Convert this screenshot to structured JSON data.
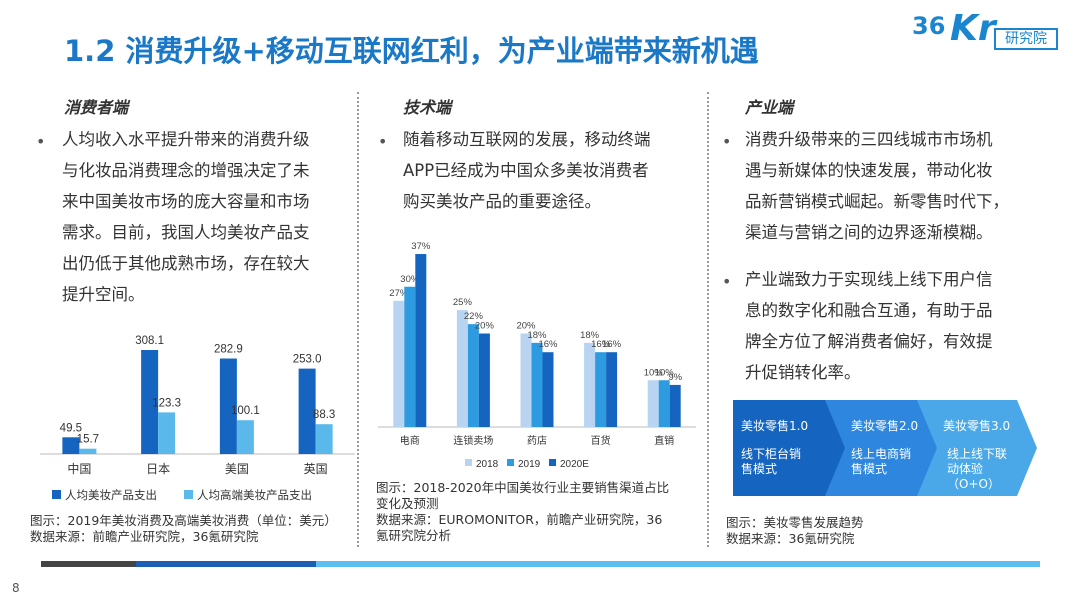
{
  "title": "1.2 消费升级+移动互联网红利，为产业端带来新机遇",
  "logo": {
    "num": "36",
    "kr": "Kr",
    "box": "研究院"
  },
  "col1": {
    "title": "消费者端",
    "lines": [
      "人均收入水平提升带来的消费升级",
      "与化妆品消费理念的增强决定了未",
      "来中国美妆市场的庞大容量和市场",
      "需求。目前，我国人均美妆产品支",
      "出仍低于其他成熟市场，存在较大",
      "提升空间。"
    ],
    "caption": [
      "图示：2019年美妆消费及高端美妆消费（单位：美元）",
      "数据来源：前瞻产业研究院，36氪研究院"
    ]
  },
  "col2": {
    "title": "技术端",
    "lines": [
      "随着移动互联网的发展，移动终端",
      "APP已经成为中国众多美妆消费者",
      "购买美妆产品的重要途径。"
    ],
    "caption": [
      "图示：2018-2020年中国美妆行业主要销售渠道占比",
      "变化及预测",
      "数据来源：EUROMONITOR，前瞻产业研究院，36",
      "氪研究院分析"
    ]
  },
  "col3": {
    "title": "产业端",
    "bullet1": [
      "消费升级带来的三四线城市市场机",
      "遇与新媒体的快速发展，带动化妆",
      "品新营销模式崛起。新零售时代下，",
      "渠道与营销之间的边界逐渐模糊。"
    ],
    "bullet2": [
      "产业端致力于实现线上线下用户信",
      "息的数字化和融合互通，有助于品",
      "牌全方位了解消费者偏好，有效提",
      "升促销转化率。"
    ],
    "caption": [
      "图示：美妆零售发展趋势",
      "数据来源：36氪研究院"
    ]
  },
  "chevrons": [
    {
      "label": "美妆零售1.0",
      "body": [
        "线下柜台销",
        "售模式"
      ],
      "color": "#1565c0"
    },
    {
      "label": "美妆零售2.0",
      "body": [
        "线上电商销",
        "售模式"
      ],
      "color": "#2e86de"
    },
    {
      "label": "美妆零售3.0",
      "body": [
        "线上线下联",
        "动体验",
        "（O+O）"
      ],
      "color": "#4aa8e8"
    }
  ],
  "bullet_char": "•",
  "page_number": "8",
  "colors": {
    "dark_blue": "#1565c0",
    "mid_blue": "#2e9be0",
    "light_blue": "#5bb8ea",
    "pale_blue": "#b8d4f0"
  },
  "chart_data": [
    {
      "type": "bar",
      "categories": [
        "中国",
        "日本",
        "美国",
        "英国"
      ],
      "series": [
        {
          "name": "人均美妆产品支出",
          "values": [
            49.5,
            308.1,
            282.9,
            253.0
          ],
          "labels": [
            "49.5",
            "308.1",
            "282.9",
            "253.0"
          ],
          "color": "#1565c0"
        },
        {
          "name": "人均高端美妆产品支出",
          "values": [
            15.7,
            123.3,
            100.1,
            88.3
          ],
          "labels": [
            "15.7",
            "123.3",
            "100.1",
            "88.3"
          ],
          "color": "#5bb8ea"
        }
      ],
      "ylim": [
        0,
        320
      ],
      "legend": "bottom"
    },
    {
      "type": "bar",
      "categories": [
        "电商",
        "连锁卖场",
        "药店",
        "百货",
        "直销"
      ],
      "series": [
        {
          "name": "2018",
          "values": [
            27,
            25,
            20,
            18,
            10
          ],
          "labels": [
            "27%",
            "25%",
            "20%",
            "18%",
            "10%"
          ],
          "color": "#b8d4f0"
        },
        {
          "name": "2019",
          "values": [
            30,
            22,
            18,
            16,
            10
          ],
          "labels": [
            "30%",
            "22%",
            "18%",
            "16%",
            "10%"
          ],
          "color": "#2e9be0"
        },
        {
          "name": "2020E",
          "values": [
            37,
            20,
            16,
            16,
            9
          ],
          "labels": [
            "37%",
            "20%",
            "16%",
            "16%",
            "9%"
          ],
          "color": "#1565c0"
        }
      ],
      "ylim": [
        0,
        40
      ],
      "legend": "bottom"
    }
  ]
}
